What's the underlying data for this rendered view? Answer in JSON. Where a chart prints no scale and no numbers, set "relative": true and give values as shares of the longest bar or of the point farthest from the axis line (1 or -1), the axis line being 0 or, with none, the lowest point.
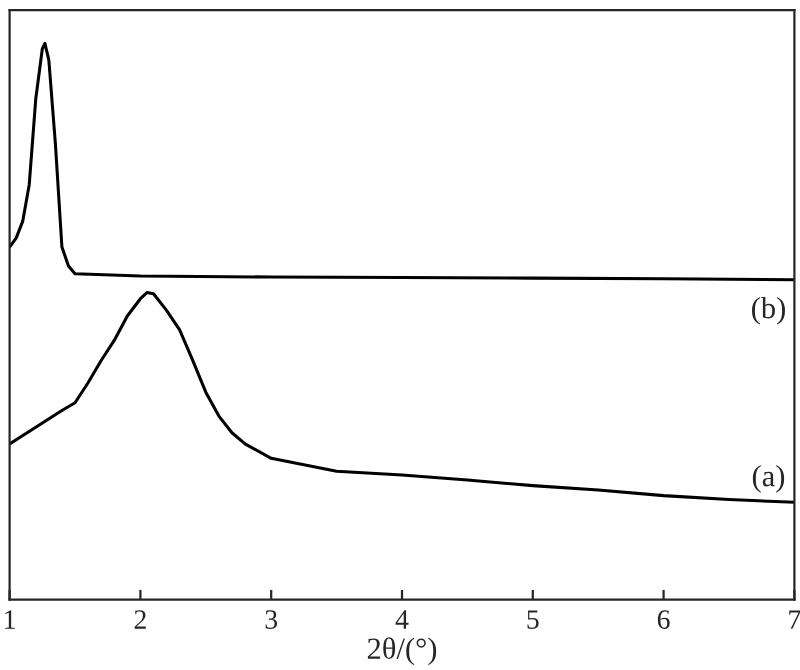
{
  "chart_data": {
    "type": "line",
    "relative": true,
    "xlabel": "2θ/(°)",
    "xlim": [
      1,
      7
    ],
    "xticks": [
      1,
      2,
      3,
      4,
      5,
      6,
      7
    ],
    "tick_labels": "x",
    "grid": false,
    "marker": "none",
    "line_style": "solid",
    "series": [
      {
        "color": "#000000",
        "x": [
          1.0,
          1.2,
          1.4,
          1.5,
          1.6,
          1.7,
          1.8,
          1.9,
          2.0,
          2.05,
          2.1,
          2.2,
          2.3,
          2.4,
          2.5,
          2.6,
          2.7,
          2.8,
          3.0,
          3.5,
          4.0,
          4.5,
          5.0,
          5.5,
          6.0,
          6.5,
          7.0
        ],
        "values": [
          0.28,
          0.31,
          0.34,
          0.354,
          0.39,
          0.43,
          0.466,
          0.51,
          0.541,
          0.552,
          0.55,
          0.52,
          0.485,
          0.43,
          0.373,
          0.33,
          0.3,
          0.28,
          0.254,
          0.231,
          0.224,
          0.215,
          0.205,
          0.197,
          0.187,
          0.18,
          0.175
        ]
      },
      {
        "color": "#000000",
        "x": [
          1.0,
          1.05,
          1.1,
          1.15,
          1.2,
          1.25,
          1.27,
          1.3,
          1.35,
          1.4,
          1.45,
          1.5,
          2.0,
          3.0,
          4.0,
          5.0,
          6.0,
          7.0
        ],
        "values": [
          0.634,
          0.65,
          0.68,
          0.746,
          0.9,
          0.99,
          1.0,
          0.97,
          0.82,
          0.634,
          0.6,
          0.586,
          0.582,
          0.58,
          0.579,
          0.578,
          0.577,
          0.575
        ]
      }
    ],
    "annotations": [
      "(a)",
      "(b)"
    ]
  }
}
